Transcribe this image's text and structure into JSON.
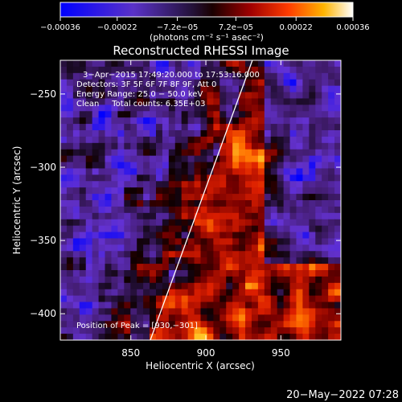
{
  "chart_data": {
    "type": "heatmap",
    "title": "Reconstructed RHESSI Image",
    "xlabel": "Heliocentric X (arcsec)",
    "ylabel": "Heliocentric Y (arcsec)",
    "xlim": [
      803,
      990
    ],
    "ylim": [
      -418,
      -227
    ],
    "x_ticks": [
      850,
      900,
      950
    ],
    "y_ticks": [
      -250,
      -300,
      -350,
      -400
    ],
    "x_tick_labels": [
      "850",
      "900",
      "950"
    ],
    "y_tick_labels": [
      "−250",
      "−300",
      "−350",
      "−400"
    ],
    "colorbar": {
      "range": [
        -0.00036,
        0.00036
      ],
      "ticks": [
        -0.00036,
        -0.00022,
        -7.2e-05,
        7.2e-05,
        0.00022,
        0.00036
      ],
      "tick_labels": [
        "−0.00036",
        "−0.00022",
        "−7.2e−05",
        "7.2e−05",
        "0.00022",
        "0.00036"
      ],
      "units_label": "(photons cm⁻² s⁻¹ asec⁻²)"
    },
    "annotations": {
      "line1": "3−Apr−2015 17:49:20.000 to 17:53:16.000",
      "line2": "Detectors: 3F 5F 6F 7F 8F 9F, Att 0",
      "line3": "Energy Range: 25.0 − 50.0 keV",
      "line4": "Clean     Total counts: 6.35E+03",
      "peak": "Position of Peak = [930,−301]"
    },
    "limb_line": {
      "x": [
        863,
        931
      ],
      "y": [
        -418,
        -227
      ]
    },
    "peak_position": [
      930,
      -301
    ]
  },
  "footer": {
    "timestamp": "20−May−2022 07:28"
  }
}
